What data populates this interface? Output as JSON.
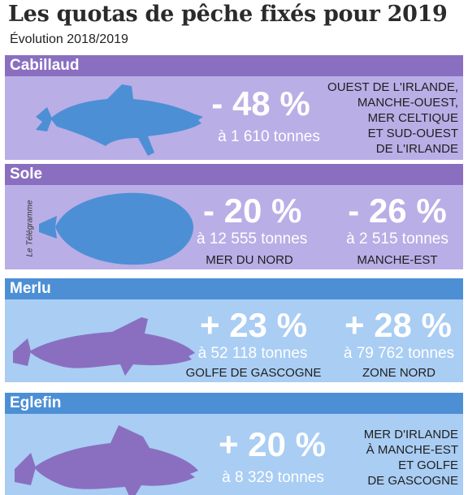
{
  "title": "Les quotas de pêche fixés pour 2019",
  "subtitle": "Évolution 2018/2019",
  "credit": "Le Télégramme",
  "colors": {
    "purple_band": "#8a6fc0",
    "purple_body": "#b9aee6",
    "blue_band": "#4d8fd4",
    "blue_body": "#a9cdf3",
    "fish_blue": "#4d8fd4",
    "fish_purple": "#8a6fc0"
  },
  "sections": [
    {
      "name": "Cabillaud",
      "icon": "cod-fish-icon",
      "quotas": [
        {
          "change": "- 48 %",
          "tonnage": "à 1 610 tonnes",
          "zone_lines": [
            "OUEST DE L'IRLANDE,",
            "MANCHE-OUEST,",
            "MER CELTIQUE",
            "ET SUD-OUEST",
            "DE L'IRLANDE"
          ]
        }
      ]
    },
    {
      "name": "Sole",
      "icon": "sole-fish-icon",
      "quotas": [
        {
          "change": "- 20 %",
          "tonnage": "à 12 555 tonnes",
          "zone": "MER DU NORD"
        },
        {
          "change": "- 26 %",
          "tonnage": "à 2 515 tonnes",
          "zone": "MANCHE-EST"
        }
      ]
    },
    {
      "name": "Merlu",
      "icon": "hake-fish-icon",
      "quotas": [
        {
          "change": "+ 23 %",
          "tonnage": "à 52 118 tonnes",
          "zone": "GOLFE DE GASCOGNE"
        },
        {
          "change": "+ 28 %",
          "tonnage": "à 79 762 tonnes",
          "zone": "ZONE NORD"
        }
      ]
    },
    {
      "name": "Eglefin",
      "icon": "haddock-fish-icon",
      "quotas": [
        {
          "change": "+ 20 %",
          "tonnage": "à 8 329 tonnes",
          "zone_lines": [
            "MER D'IRLANDE",
            "À MANCHE-EST",
            "ET GOLFE",
            "DE GASCOGNE"
          ]
        }
      ]
    }
  ]
}
